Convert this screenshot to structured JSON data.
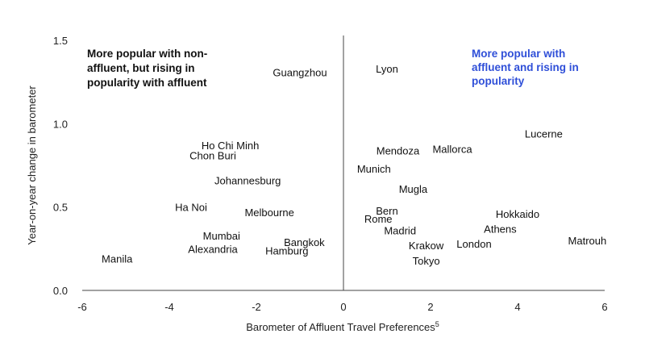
{
  "chart_data": {
    "type": "scatter",
    "xlabel": "Barometer of Affluent Travel Preferences",
    "xlabel_superscript": "5",
    "ylabel": "Year-on-year change in barometer",
    "xlim": [
      -6,
      6
    ],
    "ylim": [
      0,
      1.5
    ],
    "x_ticks": [
      -6,
      -4,
      -2,
      0,
      2,
      4,
      6
    ],
    "y_ticks": [
      0.0,
      0.5,
      1.0,
      1.5
    ],
    "x_tick_labels": [
      "-6",
      "-4",
      "-2",
      "0",
      "2",
      "4",
      "6"
    ],
    "y_tick_labels": [
      "0.0",
      "0.5",
      "1.0",
      "1.5"
    ],
    "grid": false,
    "quadrant_labels": {
      "left": [
        "More popular with non-",
        "affluent, but rising in",
        "popularity with affluent"
      ],
      "right": [
        "More popular with",
        "affluent and rising in",
        "popularity"
      ]
    },
    "colors": {
      "text": "#111111",
      "axis": "#444444",
      "accent_blue": "#2f4fd8"
    },
    "points": [
      {
        "label": "Guangzhou",
        "x": -1.0,
        "y": 1.31
      },
      {
        "label": "Lyon",
        "x": 1.0,
        "y": 1.33
      },
      {
        "label": "Lucerne",
        "x": 4.6,
        "y": 0.94
      },
      {
        "label": "Ho Chi Minh",
        "x": -2.6,
        "y": 0.87
      },
      {
        "label": "Chon Buri",
        "x": -3.0,
        "y": 0.81
      },
      {
        "label": "Mendoza",
        "x": 1.25,
        "y": 0.84
      },
      {
        "label": "Mallorca",
        "x": 2.5,
        "y": 0.85
      },
      {
        "label": "Munich",
        "x": 0.7,
        "y": 0.73
      },
      {
        "label": "Johannesburg",
        "x": -2.2,
        "y": 0.66
      },
      {
        "label": "Mugla",
        "x": 1.6,
        "y": 0.61
      },
      {
        "label": "Ha Noi",
        "x": -3.5,
        "y": 0.5
      },
      {
        "label": "Melbourne",
        "x": -1.7,
        "y": 0.47
      },
      {
        "label": "Bern",
        "x": 1.0,
        "y": 0.48
      },
      {
        "label": "Rome",
        "x": 0.8,
        "y": 0.43
      },
      {
        "label": "Hokkaido",
        "x": 4.0,
        "y": 0.46
      },
      {
        "label": "Madrid",
        "x": 1.3,
        "y": 0.36
      },
      {
        "label": "Athens",
        "x": 3.6,
        "y": 0.37
      },
      {
        "label": "Mumbai",
        "x": -2.8,
        "y": 0.33
      },
      {
        "label": "Bangkok",
        "x": -0.9,
        "y": 0.29
      },
      {
        "label": "Alexandria",
        "x": -3.0,
        "y": 0.25
      },
      {
        "label": "Hamburg",
        "x": -1.3,
        "y": 0.24
      },
      {
        "label": "Krakow",
        "x": 1.9,
        "y": 0.27
      },
      {
        "label": "London",
        "x": 3.0,
        "y": 0.28
      },
      {
        "label": "Matrouh",
        "x": 5.6,
        "y": 0.3
      },
      {
        "label": "Manila",
        "x": -5.2,
        "y": 0.19
      },
      {
        "label": "Tokyo",
        "x": 1.9,
        "y": 0.18
      }
    ]
  }
}
